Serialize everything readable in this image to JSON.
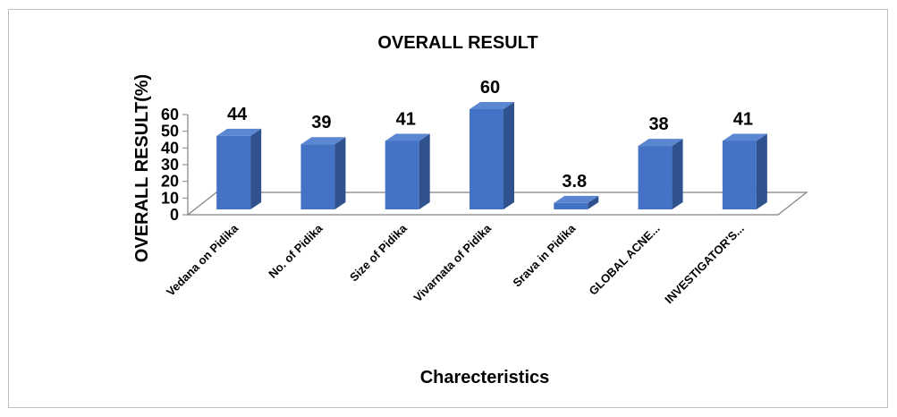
{
  "chart_data": {
    "type": "bar",
    "title": "OVERALL RESULT",
    "xlabel": "Charecteristics",
    "ylabel": "OVERALL RESULT(%)",
    "categories": [
      "Vedana on Pidika",
      "No. of Pidika",
      "Size of  Pidika",
      "Vivarnata of Pidika",
      "Srava in Pidika",
      "GLOBAL ACNE...",
      "INVESTIGATOR'S..."
    ],
    "values": [
      44,
      39,
      41,
      60,
      3.8,
      38,
      41
    ],
    "data_labels": [
      "44",
      "39",
      "41",
      "60",
      "3.8",
      "38",
      "41"
    ],
    "yticks": [
      "0",
      "10",
      "20",
      "30",
      "40",
      "50",
      "60"
    ],
    "ylim": [
      0,
      60
    ],
    "grid": false,
    "legend": "none",
    "colors": {
      "bar_front": "#4472C4",
      "bar_side": "#2F528F",
      "bar_top": "#5B86D1",
      "floor": "#808080"
    }
  }
}
